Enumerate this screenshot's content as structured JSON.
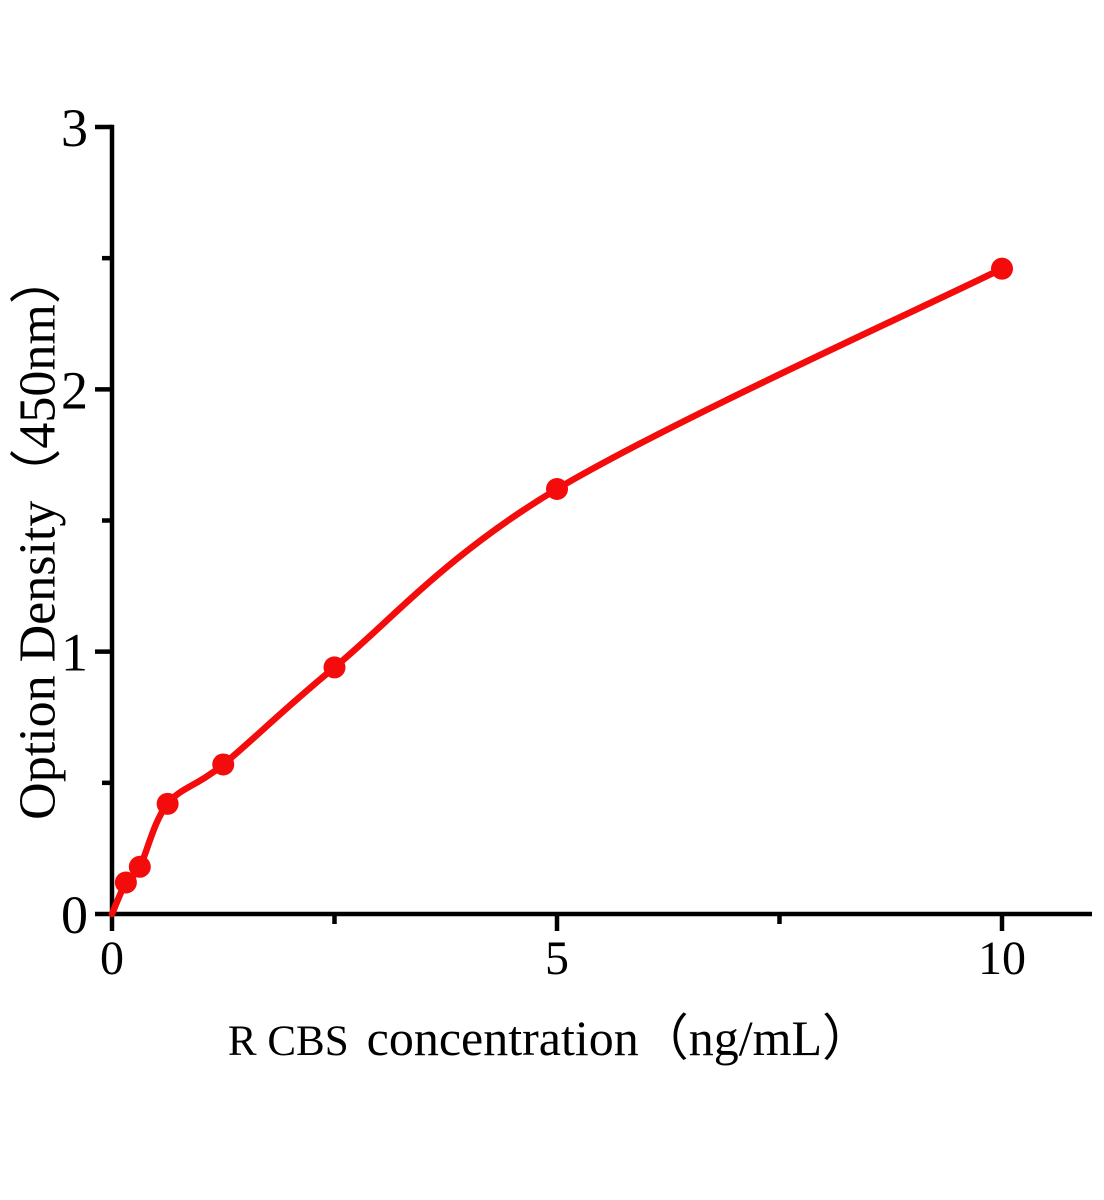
{
  "chart_data": {
    "type": "scatter",
    "title": "",
    "xlabel_prefix": "R CBS",
    "xlabel_main": "concentration（ng/mL）",
    "xlabel_full": "R CBS concentration（ng/mL）",
    "ylabel": "Option Density（450nm）",
    "x": [
      0.156,
      0.3125,
      0.625,
      1.25,
      2.5,
      5,
      10
    ],
    "y": [
      0.12,
      0.18,
      0.42,
      0.57,
      0.94,
      1.62,
      2.46
    ],
    "curve": "smooth fit through origin and all points",
    "xlim": [
      0,
      11
    ],
    "ylim": [
      0,
      3
    ],
    "x_major_ticks": [
      0,
      5,
      10
    ],
    "x_tick_labels": [
      "0",
      "5",
      "10"
    ],
    "x_minor_ticks": [
      2.5,
      7.5
    ],
    "y_major_ticks": [
      0,
      1,
      2,
      3
    ],
    "y_tick_labels": [
      "0",
      "1",
      "2",
      "3"
    ],
    "y_minor_ticks": [
      0.5,
      1.5,
      2.5
    ],
    "grid": false,
    "legend": "none",
    "point_color": "#f40b0b",
    "curve_color": "#f40b0b",
    "axis_color": "#000000"
  }
}
